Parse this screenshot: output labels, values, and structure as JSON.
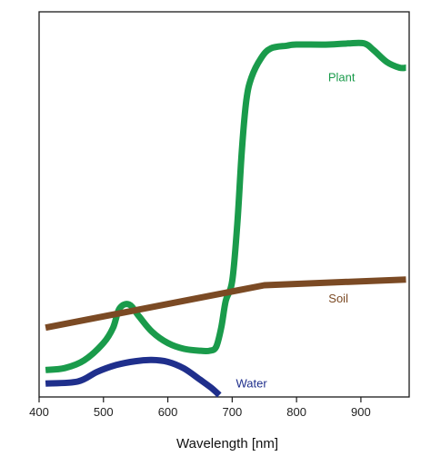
{
  "chart_data": {
    "type": "line",
    "title": "",
    "xlabel": "Wavelength [nm]",
    "ylabel": "",
    "xlim": [
      400,
      975
    ],
    "ylim": [
      0,
      100
    ],
    "x_ticks": [
      400,
      500,
      600,
      700,
      800,
      900
    ],
    "grid": false,
    "series": [
      {
        "name": "Plant",
        "color": "#1a9b4b",
        "x": [
          410,
          440,
          470,
          500,
          515,
          525,
          540,
          555,
          575,
          600,
          625,
          650,
          665,
          675,
          683,
          690,
          700,
          708,
          715,
          722,
          730,
          745,
          760,
          785,
          800,
          850,
          880,
          905,
          920,
          940,
          960,
          970
        ],
        "y": [
          7,
          7.5,
          9.5,
          14,
          18,
          23,
          24,
          21,
          17,
          14,
          12.5,
          12,
          12,
          13,
          18,
          25,
          30,
          45,
          64,
          77,
          83,
          88,
          90.5,
          91.2,
          91.5,
          91.5,
          91.8,
          91.8,
          90,
          87,
          85.5,
          85.5
        ],
        "label_at": [
          870,
          82
        ]
      },
      {
        "name": "Soil",
        "color": "#7b4a24",
        "x": [
          410,
          750,
          970
        ],
        "y": [
          18,
          29,
          30.5
        ],
        "label_at": [
          865,
          24.5
        ]
      },
      {
        "name": "Water",
        "color": "#1f2f8c",
        "x": [
          410,
          460,
          490,
          520,
          550,
          575,
          600,
          625,
          650,
          668,
          680
        ],
        "y": [
          3.5,
          4,
          6.5,
          8.3,
          9.3,
          9.6,
          9.1,
          7.4,
          4.5,
          2.3,
          0.5
        ],
        "label_at": [
          730,
          2.5
        ]
      }
    ]
  }
}
